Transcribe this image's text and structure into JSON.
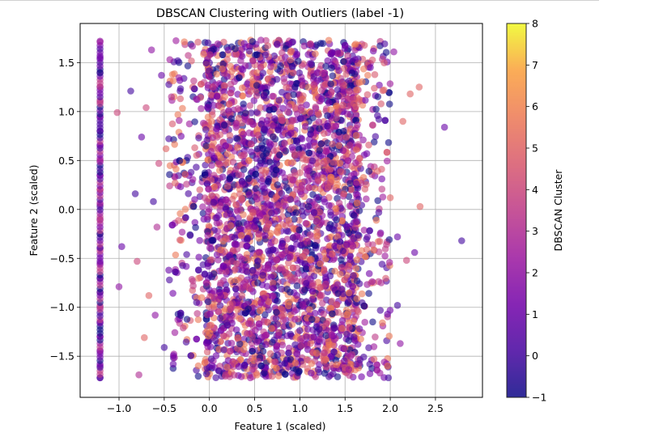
{
  "chart_data": {
    "type": "scatter",
    "title": "DBSCAN Clustering with Outliers (label -1)",
    "xlabel": "Feature 1 (scaled)",
    "ylabel": "Feature 2 (scaled)",
    "xlim": [
      -1.43,
      3.02
    ],
    "ylim": [
      -1.92,
      1.9
    ],
    "xticks": [
      -1.0,
      -0.5,
      0.0,
      0.5,
      1.0,
      1.5,
      2.0,
      2.5
    ],
    "xtick_labels": [
      "−1.0",
      "−0.5",
      "0.0",
      "0.5",
      "1.0",
      "1.5",
      "2.0",
      "2.5"
    ],
    "yticks": [
      -1.5,
      -1.0,
      -0.5,
      0.0,
      0.5,
      1.0,
      1.5
    ],
    "ytick_labels": [
      "−1.5",
      "−1.0",
      "−0.5",
      "0.0",
      "0.5",
      "1.0",
      "1.5"
    ],
    "grid": true,
    "colormap": "plasma",
    "alpha": 0.6,
    "colorbar": {
      "label": "DBSCAN Cluster",
      "range": [
        -1,
        8
      ],
      "ticks": [
        -1,
        0,
        1,
        2,
        3,
        4,
        5,
        6,
        7,
        8
      ],
      "tick_labels": [
        "−1",
        "0",
        "1",
        "2",
        "3",
        "4",
        "5",
        "6",
        "7",
        "8"
      ]
    },
    "points": [
      [
        -1.21,
        -1.72,
        1
      ],
      [
        -1.21,
        -1.6,
        2
      ],
      [
        -1.21,
        -1.45,
        1
      ],
      [
        -1.21,
        -1.3,
        2
      ],
      [
        -1.21,
        -1.15,
        1
      ],
      [
        -1.21,
        -1.0,
        2
      ],
      [
        -1.21,
        -0.85,
        3
      ],
      [
        -1.21,
        -0.7,
        2
      ],
      [
        -1.21,
        -0.55,
        1
      ],
      [
        -1.21,
        -0.4,
        2
      ],
      [
        -1.21,
        -0.25,
        3
      ],
      [
        -1.21,
        -0.1,
        2
      ],
      [
        -1.21,
        0.05,
        3
      ],
      [
        -1.21,
        0.2,
        4
      ],
      [
        -1.21,
        0.35,
        2
      ],
      [
        -1.21,
        0.5,
        3
      ],
      [
        -1.21,
        0.65,
        2
      ],
      [
        -1.21,
        0.8,
        1
      ],
      [
        -1.21,
        0.95,
        2
      ],
      [
        -1.21,
        1.1,
        3
      ],
      [
        -1.21,
        1.25,
        2
      ],
      [
        -1.21,
        1.4,
        2
      ],
      [
        -1.21,
        1.55,
        1
      ],
      [
        -1.21,
        1.72,
        2
      ],
      [
        -1.02,
        0.99,
        4
      ],
      [
        -1.0,
        -0.79,
        2
      ],
      [
        -0.97,
        -0.38,
        1
      ],
      [
        -0.87,
        1.21,
        0
      ],
      [
        -0.82,
        0.16,
        0
      ],
      [
        -0.8,
        -0.53,
        4
      ],
      [
        -0.78,
        -1.69,
        3
      ],
      [
        -0.75,
        0.74,
        1
      ],
      [
        -0.72,
        -1.31,
        5
      ],
      [
        -0.7,
        1.04,
        4
      ],
      [
        -0.67,
        -0.88,
        5
      ],
      [
        -0.64,
        1.63,
        2
      ],
      [
        -0.62,
        0.08,
        0
      ],
      [
        -0.6,
        -1.08,
        2
      ],
      [
        -0.58,
        -0.18,
        3
      ],
      [
        -0.56,
        0.47,
        4
      ],
      [
        -0.53,
        1.37,
        1
      ],
      [
        -0.5,
        -1.41,
        0
      ],
      [
        -0.48,
        0.62,
        5
      ],
      [
        -0.45,
        -0.62,
        1
      ],
      [
        -0.42,
        1.15,
        3
      ],
      [
        -0.4,
        -1.58,
        1
      ],
      [
        -0.38,
        0.27,
        5
      ],
      [
        -0.35,
        1.52,
        0
      ],
      [
        1.62,
        1.05,
        5
      ],
      [
        1.66,
        -1.22,
        1
      ],
      [
        1.7,
        0.71,
        2
      ],
      [
        1.74,
        -0.41,
        5
      ],
      [
        1.78,
        1.45,
        1
      ],
      [
        1.82,
        -1.53,
        5
      ],
      [
        1.86,
        0.39,
        5
      ],
      [
        1.9,
        -0.75,
        3
      ],
      [
        1.93,
        1.22,
        5
      ],
      [
        1.97,
        -1.07,
        1
      ],
      [
        2.0,
        0.12,
        5
      ],
      [
        2.04,
        1.61,
        2
      ],
      [
        2.08,
        -0.28,
        1
      ],
      [
        2.11,
        -1.37,
        2
      ],
      [
        2.14,
        0.9,
        5
      ],
      [
        2.18,
        -0.52,
        4
      ],
      [
        2.22,
        1.18,
        5
      ],
      [
        2.27,
        -0.44,
        1
      ],
      [
        2.32,
        1.25,
        5
      ],
      [
        2.33,
        0.03,
        5
      ],
      [
        2.6,
        0.84,
        1
      ],
      [
        2.79,
        -0.32,
        0
      ],
      [
        2.08,
        -0.98,
        0
      ],
      [
        1.98,
        -1.72,
        0
      ]
    ]
  }
}
